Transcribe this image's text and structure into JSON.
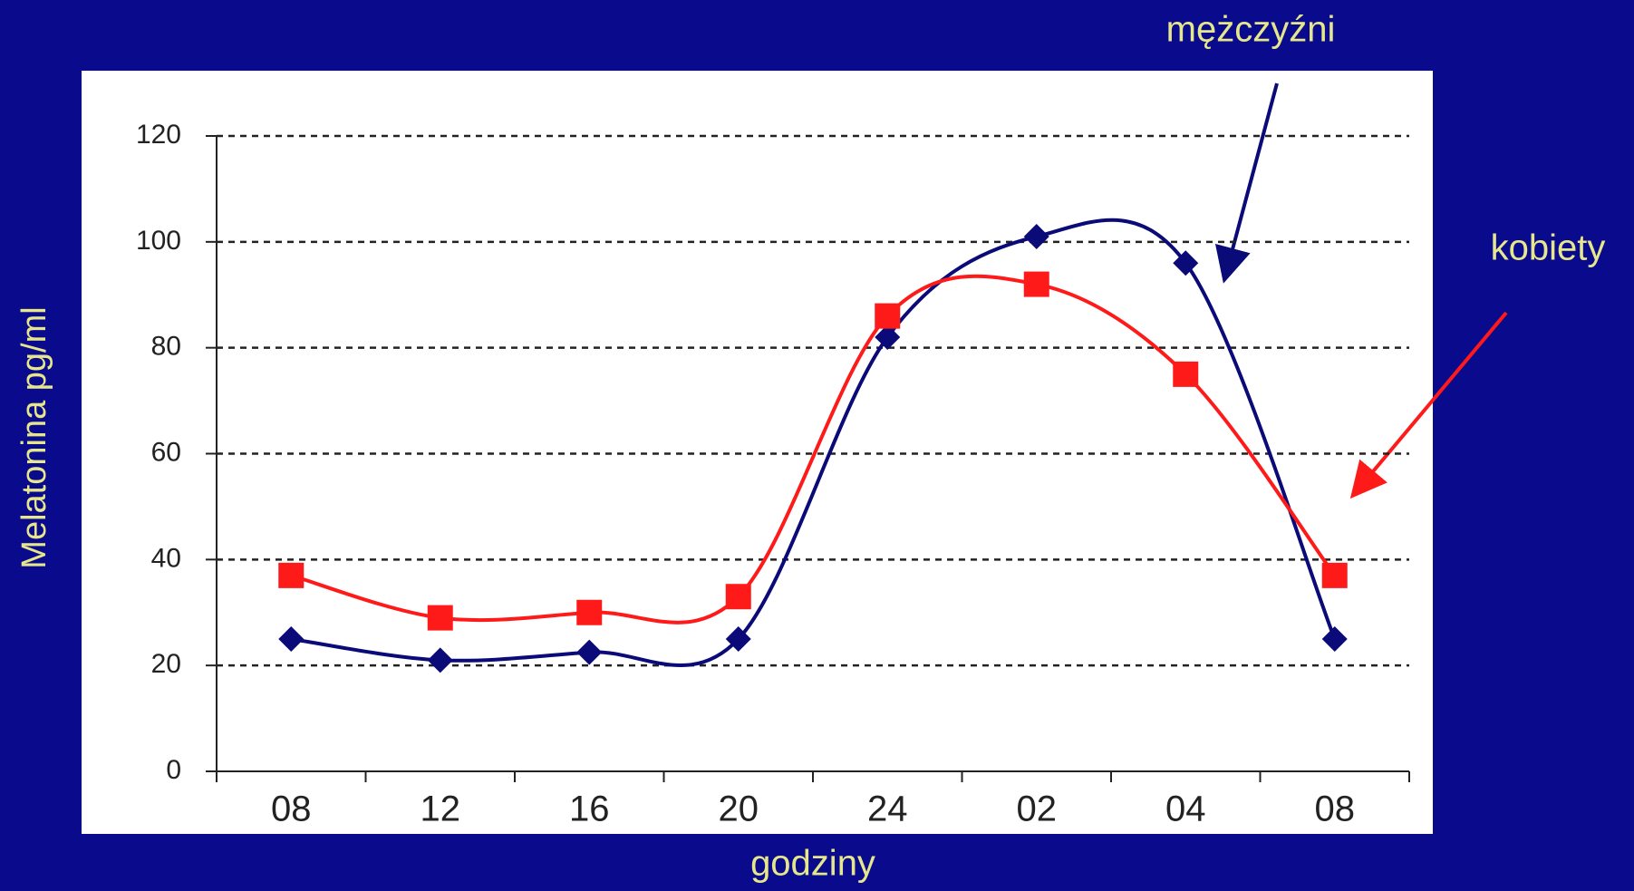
{
  "chart_data": {
    "type": "line",
    "categories": [
      "08",
      "12",
      "16",
      "20",
      "24",
      "02",
      "04",
      "08"
    ],
    "series": [
      {
        "name": "mężczyźni",
        "color": "#0a0a78",
        "marker": "diamond",
        "values": [
          25,
          21,
          22.5,
          25,
          82,
          101,
          96,
          25
        ]
      },
      {
        "name": "kobiety",
        "color": "#ff1a1a",
        "marker": "square",
        "values": [
          37,
          29,
          30,
          33,
          86,
          92,
          75,
          37
        ]
      }
    ],
    "ylabel": "Melatonina  pg/ml",
    "xlabel": "godziny",
    "ylim": [
      0,
      120
    ],
    "yticks": [
      0,
      20,
      40,
      60,
      80,
      100,
      120
    ],
    "grid": true,
    "smooth": true
  }
}
